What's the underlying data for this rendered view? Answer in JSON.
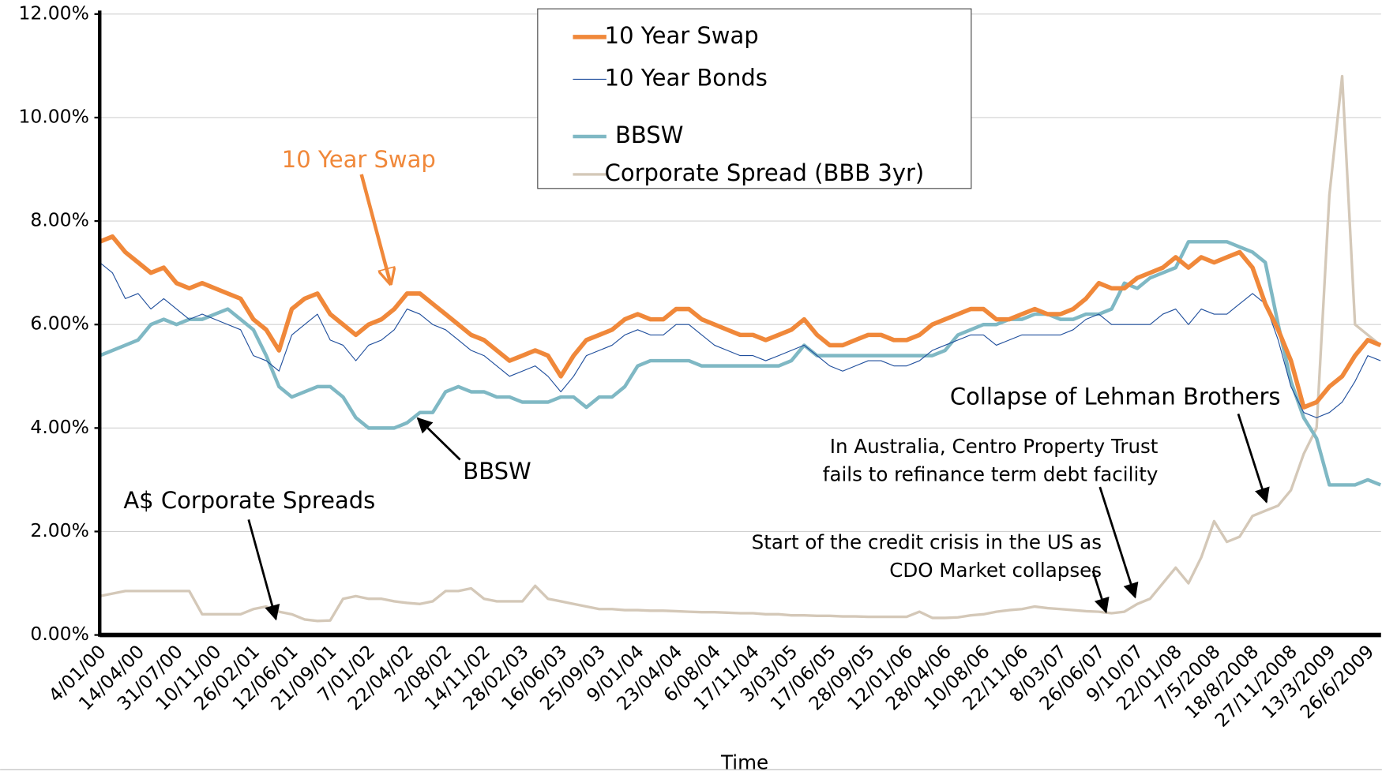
{
  "chart_data": {
    "type": "line",
    "x_label": "Time",
    "categories": [
      "4/01/00",
      null,
      null,
      "14/04/00",
      null,
      null,
      "31/07/00",
      null,
      null,
      "10/11/00",
      null,
      null,
      "26/02/01",
      null,
      null,
      "12/06/01",
      null,
      null,
      "21/09/01",
      null,
      null,
      "7/01/02",
      null,
      null,
      "22/04/02",
      null,
      null,
      "2/08/02",
      null,
      null,
      "14/11/02",
      null,
      null,
      "28/02/03",
      null,
      null,
      "16/06/03",
      null,
      null,
      "25/09/03",
      null,
      null,
      "9/01/04",
      null,
      null,
      "23/04/04",
      null,
      null,
      "6/08/04",
      null,
      null,
      "17/11/04",
      null,
      null,
      "3/03/05",
      null,
      null,
      "17/06/05",
      null,
      null,
      "28/09/05",
      null,
      null,
      "12/01/06",
      null,
      null,
      "28/04/06",
      null,
      null,
      "10/08/06",
      null,
      null,
      "22/11/06",
      null,
      null,
      "8/03/07",
      null,
      null,
      "26/06/07",
      null,
      null,
      "9/10/07",
      null,
      null,
      "22/01/08",
      null,
      null,
      "7/5/2008",
      null,
      null,
      "18/8/2008",
      null,
      null,
      "27/11/2008",
      null,
      null,
      "13/3/2009",
      null,
      null,
      "26/6/2009",
      null
    ],
    "series": [
      {
        "name": "10 Year Swap",
        "color": "#f0883a",
        "values": [
          7.6,
          7.7,
          7.4,
          7.2,
          7.0,
          7.1,
          6.8,
          6.7,
          6.8,
          6.7,
          6.6,
          6.5,
          6.1,
          5.9,
          5.5,
          6.3,
          6.5,
          6.6,
          6.2,
          6.0,
          5.8,
          6.0,
          6.1,
          6.3,
          6.6,
          6.6,
          6.4,
          6.2,
          6.0,
          5.8,
          5.7,
          5.5,
          5.3,
          5.4,
          5.5,
          5.4,
          5.0,
          5.4,
          5.7,
          5.8,
          5.9,
          6.1,
          6.2,
          6.1,
          6.1,
          6.3,
          6.3,
          6.1,
          6.0,
          5.9,
          5.8,
          5.8,
          5.7,
          5.8,
          5.9,
          6.1,
          5.8,
          5.6,
          5.6,
          5.7,
          5.8,
          5.8,
          5.7,
          5.7,
          5.8,
          6.0,
          6.1,
          6.2,
          6.3,
          6.3,
          6.1,
          6.1,
          6.2,
          6.3,
          6.2,
          6.2,
          6.3,
          6.5,
          6.8,
          6.7,
          6.7,
          6.9,
          7.0,
          7.1,
          7.3,
          7.1,
          7.3,
          7.2,
          7.3,
          7.4,
          7.1,
          6.4,
          5.9,
          5.3,
          4.4,
          4.5,
          4.8,
          5.0,
          5.4,
          5.7,
          5.6
        ]
      },
      {
        "name": "10 Year Bonds",
        "color": "#1f4e9c",
        "values": [
          7.2,
          7.0,
          6.5,
          6.6,
          6.3,
          6.5,
          6.3,
          6.1,
          6.2,
          6.1,
          6.0,
          5.9,
          5.4,
          5.3,
          5.1,
          5.8,
          6.0,
          6.2,
          5.7,
          5.6,
          5.3,
          5.6,
          5.7,
          5.9,
          6.3,
          6.2,
          6.0,
          5.9,
          5.7,
          5.5,
          5.4,
          5.2,
          5.0,
          5.1,
          5.2,
          5.0,
          4.7,
          5.0,
          5.4,
          5.5,
          5.6,
          5.8,
          5.9,
          5.8,
          5.8,
          6.0,
          6.0,
          5.8,
          5.6,
          5.5,
          5.4,
          5.4,
          5.3,
          5.4,
          5.5,
          5.6,
          5.4,
          5.2,
          5.1,
          5.2,
          5.3,
          5.3,
          5.2,
          5.2,
          5.3,
          5.5,
          5.6,
          5.7,
          5.8,
          5.8,
          5.6,
          5.7,
          5.8,
          5.8,
          5.8,
          5.8,
          5.9,
          6.1,
          6.2,
          6.0,
          6.0,
          6.0,
          6.0,
          6.2,
          6.3,
          6.0,
          6.3,
          6.2,
          6.2,
          6.4,
          6.6,
          6.4,
          5.7,
          4.8,
          4.3,
          4.2,
          4.3,
          4.5,
          4.9,
          5.4,
          5.3
        ]
      },
      {
        "name": "BBSW",
        "color": "#7fb8c4",
        "values": [
          5.4,
          5.5,
          5.6,
          5.7,
          6.0,
          6.1,
          6.0,
          6.1,
          6.1,
          6.2,
          6.3,
          6.1,
          5.9,
          5.4,
          4.8,
          4.6,
          4.7,
          4.8,
          4.8,
          4.6,
          4.2,
          4.0,
          4.0,
          4.0,
          4.1,
          4.3,
          4.3,
          4.7,
          4.8,
          4.7,
          4.7,
          4.6,
          4.6,
          4.5,
          4.5,
          4.5,
          4.6,
          4.6,
          4.4,
          4.6,
          4.6,
          4.8,
          5.2,
          5.3,
          5.3,
          5.3,
          5.3,
          5.2,
          5.2,
          5.2,
          5.2,
          5.2,
          5.2,
          5.2,
          5.3,
          5.6,
          5.4,
          5.4,
          5.4,
          5.4,
          5.4,
          5.4,
          5.4,
          5.4,
          5.4,
          5.4,
          5.5,
          5.8,
          5.9,
          6.0,
          6.0,
          6.1,
          6.1,
          6.2,
          6.2,
          6.1,
          6.1,
          6.2,
          6.2,
          6.3,
          6.8,
          6.7,
          6.9,
          7.0,
          7.1,
          7.6,
          7.6,
          7.6,
          7.6,
          7.5,
          7.4,
          7.2,
          6.0,
          4.9,
          4.2,
          3.8,
          2.9,
          2.9,
          2.9,
          3.0,
          2.9
        ]
      },
      {
        "name": "Corporate Spread (BBB 3yr)",
        "color": "#d4c8b8",
        "values": [
          0.75,
          0.8,
          0.85,
          0.85,
          0.85,
          0.85,
          0.85,
          0.85,
          0.4,
          0.4,
          0.4,
          0.4,
          0.5,
          0.55,
          0.45,
          0.4,
          0.3,
          0.27,
          0.28,
          0.7,
          0.75,
          0.7,
          0.7,
          0.65,
          0.62,
          0.6,
          0.65,
          0.85,
          0.85,
          0.9,
          0.7,
          0.65,
          0.65,
          0.65,
          0.95,
          0.7,
          0.65,
          0.6,
          0.55,
          0.5,
          0.5,
          0.48,
          0.48,
          0.47,
          0.47,
          0.46,
          0.45,
          0.44,
          0.44,
          0.43,
          0.42,
          0.42,
          0.4,
          0.4,
          0.38,
          0.38,
          0.37,
          0.37,
          0.36,
          0.36,
          0.35,
          0.35,
          0.35,
          0.35,
          0.45,
          0.33,
          0.33,
          0.34,
          0.38,
          0.4,
          0.45,
          0.48,
          0.5,
          0.55,
          0.52,
          0.5,
          0.48,
          0.46,
          0.45,
          0.42,
          0.45,
          0.6,
          0.7,
          1.0,
          1.3,
          1.0,
          1.5,
          2.2,
          1.8,
          1.9,
          2.3,
          2.4,
          2.5,
          2.8,
          3.5,
          4.0,
          8.5,
          10.8,
          6.0,
          5.8,
          5.6
        ]
      }
    ],
    "ylim": [
      0,
      12
    ],
    "yticks": [
      {
        "value": 0,
        "label": "0.00%"
      },
      {
        "value": 2,
        "label": "2.00%"
      },
      {
        "value": 4,
        "label": "4.00%"
      },
      {
        "value": 6,
        "label": "6.00%"
      },
      {
        "value": 8,
        "label": "8.00%"
      },
      {
        "value": 10,
        "label": "10.00%"
      },
      {
        "value": 12,
        "label": "12.00%"
      }
    ],
    "grid": true,
    "legend": "top",
    "annotations": [
      {
        "lines": [
          "10 Year Swap"
        ],
        "color": "#f0883a"
      },
      {
        "lines": [
          "BBSW"
        ],
        "color": "#000000"
      },
      {
        "lines": [
          "A$ Corporate Spreads"
        ],
        "color": "#000000"
      },
      {
        "lines": [
          "Start of the credit crisis in the US as",
          "CDO Market collapses"
        ],
        "color": "#000000"
      },
      {
        "lines": [
          "In Australia, Centro Property Trust",
          "fails to refinance term debt facility"
        ],
        "color": "#000000"
      },
      {
        "lines": [
          "Collapse of Lehman Brothers"
        ],
        "color": "#000000"
      }
    ]
  }
}
